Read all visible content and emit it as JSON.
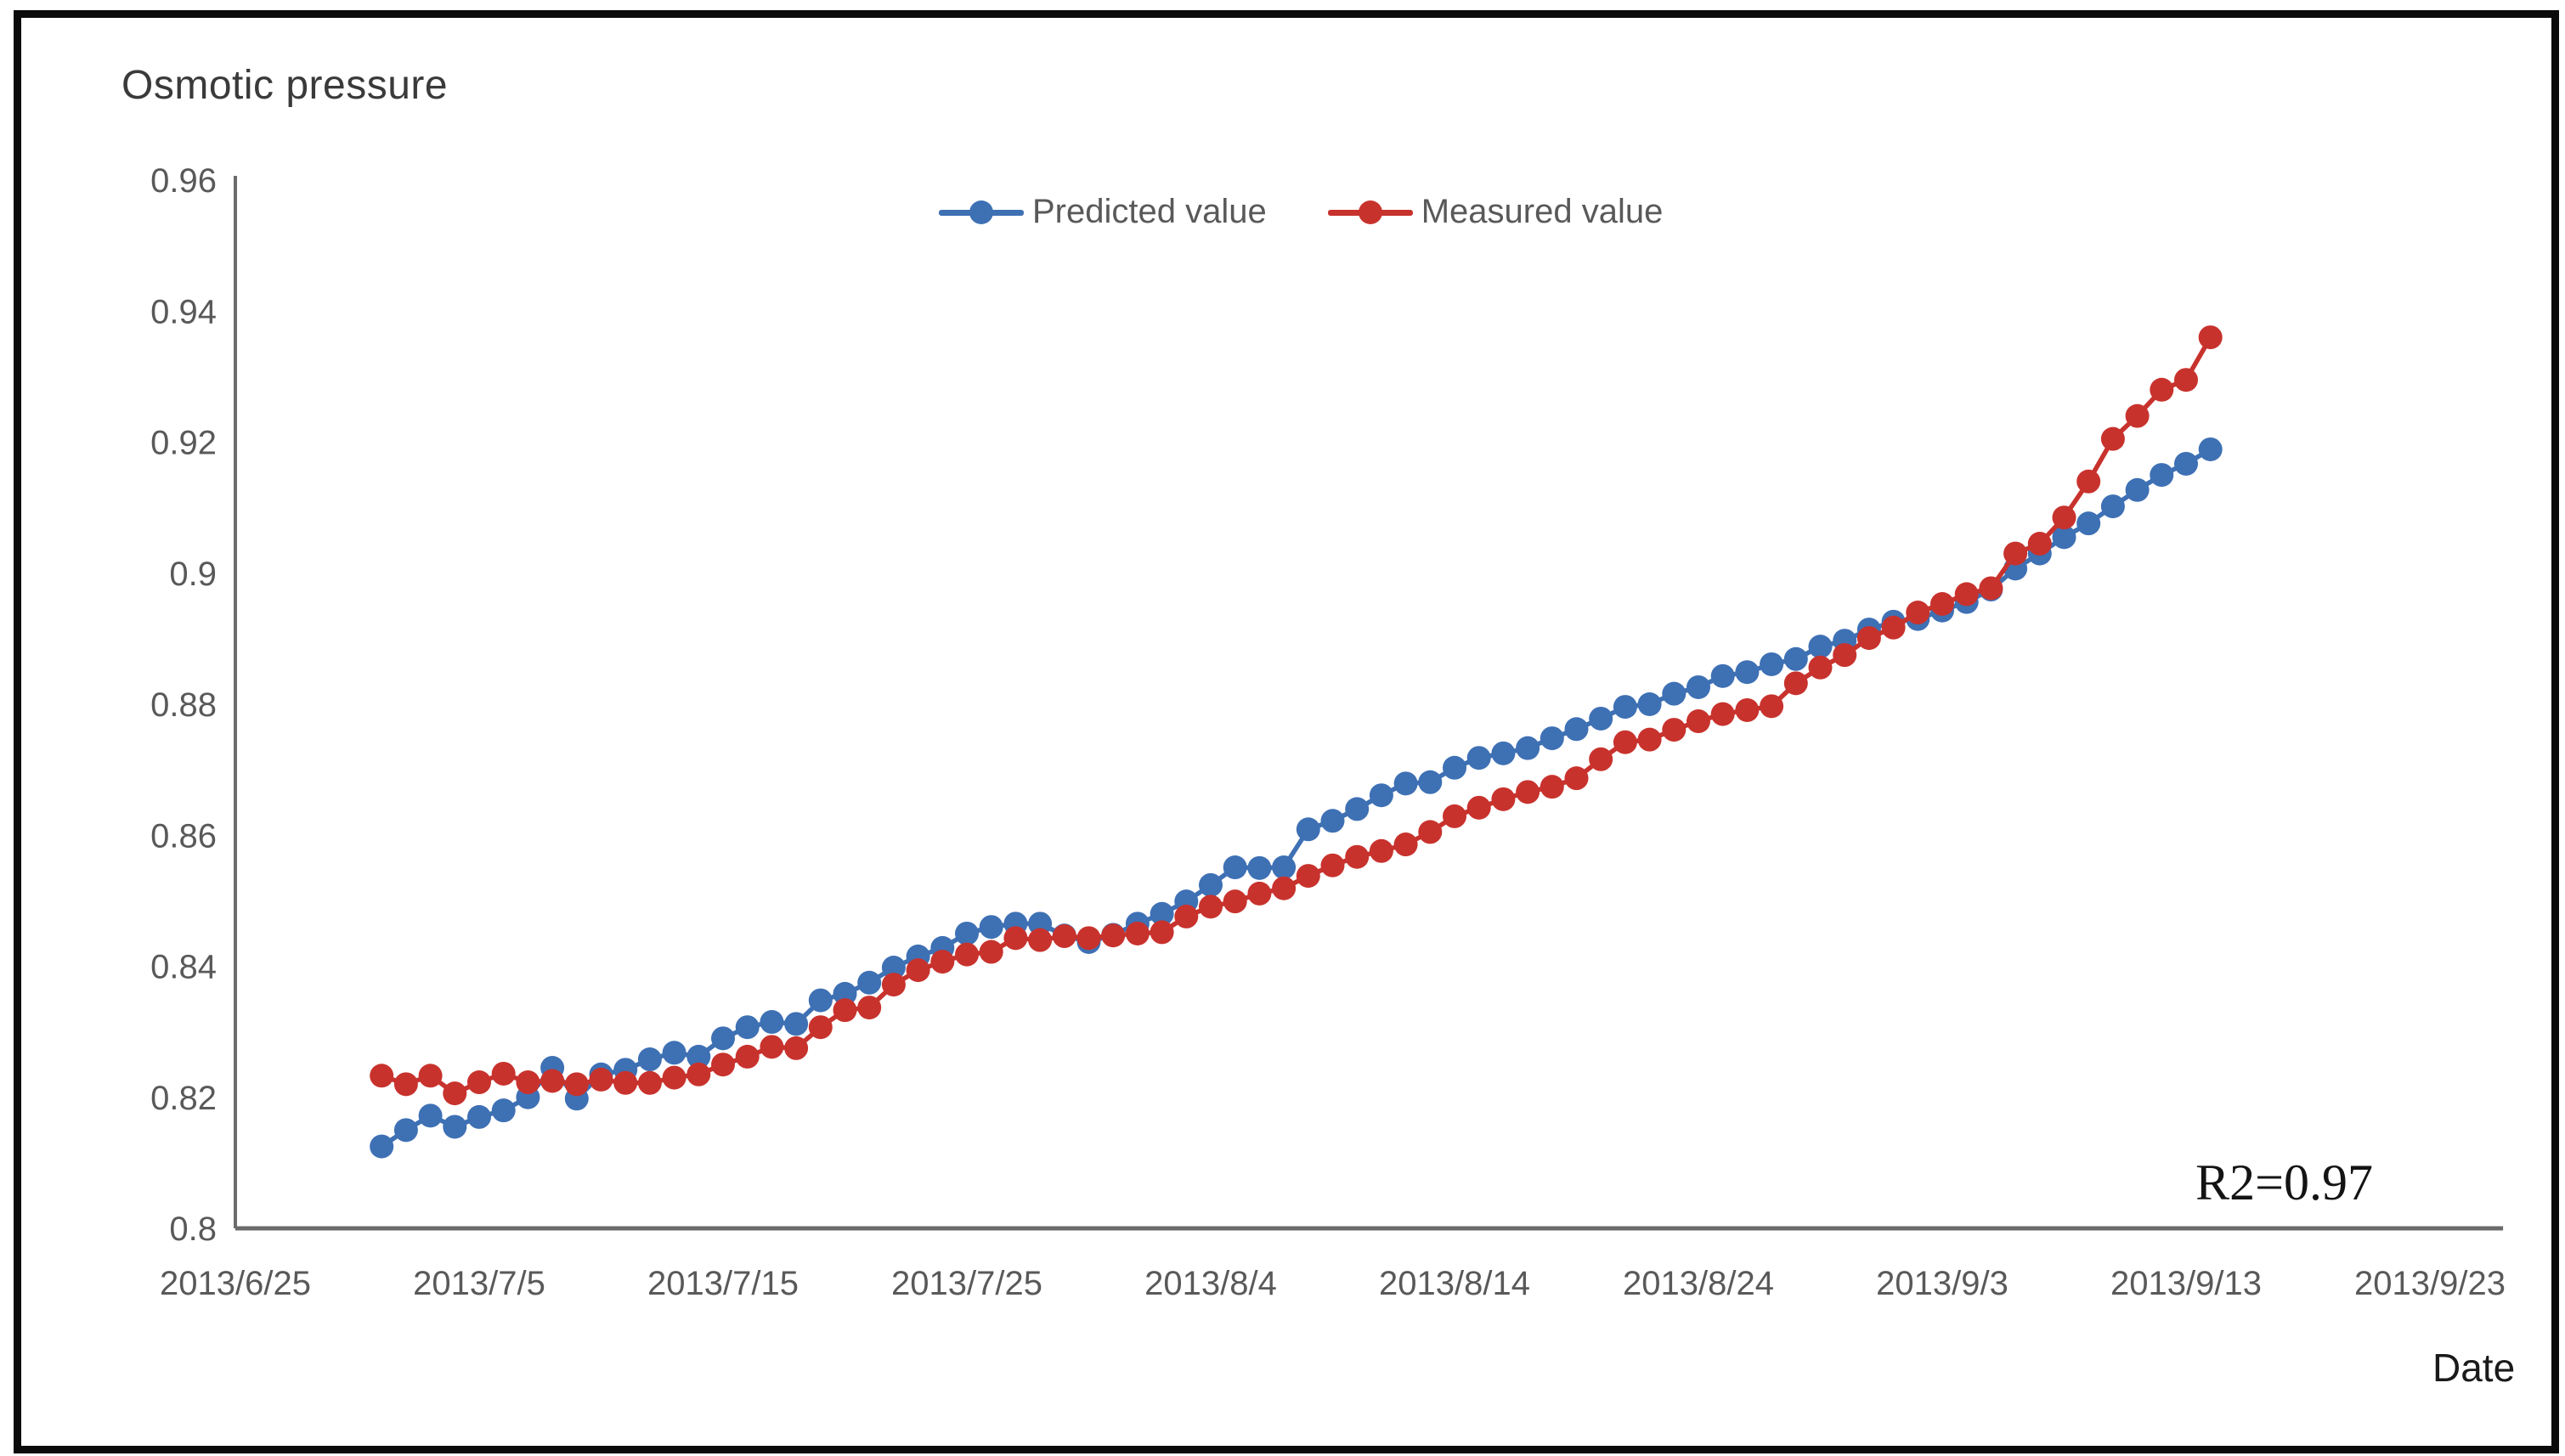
{
  "title": "Osmotic pressure",
  "x_axis_label": "Date",
  "annotation": {
    "r2": "R2=0.97"
  },
  "legend": {
    "predicted": "Predicted value",
    "measured": "Measured value"
  },
  "colors": {
    "predicted": "#3E70B4",
    "measured": "#C8322D",
    "axis": "#6b6b6b",
    "tick_text": "#595959",
    "frame_border": "#0b0b0b"
  },
  "chart_data": {
    "type": "line",
    "title": "Osmotic pressure",
    "xlabel": "Date",
    "ylabel": "Osmotic pressure",
    "grid": false,
    "legend_position": "top-center",
    "ylim": [
      0.8,
      0.96
    ],
    "y_tick_labels": [
      "0.8",
      "0.82",
      "0.84",
      "0.86",
      "0.88",
      "0.9",
      "0.92",
      "0.94",
      "0.96"
    ],
    "x_tick_labels": [
      "2013/6/25",
      "2013/7/5",
      "2013/7/15",
      "2013/7/25",
      "2013/8/4",
      "2013/8/14",
      "2013/8/24",
      "2013/9/3",
      "2013/9/13",
      "2013/9/23"
    ],
    "x_axis_start": "2013/6/25",
    "x_axis_end_day_offset": 93,
    "annotation": "R2=0.97",
    "dates": [
      "2013/7/1",
      "2013/7/2",
      "2013/7/3",
      "2013/7/4",
      "2013/7/5",
      "2013/7/6",
      "2013/7/7",
      "2013/7/8",
      "2013/7/9",
      "2013/7/10",
      "2013/7/11",
      "2013/7/12",
      "2013/7/13",
      "2013/7/14",
      "2013/7/15",
      "2013/7/16",
      "2013/7/17",
      "2013/7/18",
      "2013/7/19",
      "2013/7/20",
      "2013/7/21",
      "2013/7/22",
      "2013/7/23",
      "2013/7/24",
      "2013/7/25",
      "2013/7/26",
      "2013/7/27",
      "2013/7/28",
      "2013/7/29",
      "2013/7/30",
      "2013/7/31",
      "2013/8/1",
      "2013/8/2",
      "2013/8/3",
      "2013/8/4",
      "2013/8/5",
      "2013/8/6",
      "2013/8/7",
      "2013/8/8",
      "2013/8/9",
      "2013/8/10",
      "2013/8/11",
      "2013/8/12",
      "2013/8/13",
      "2013/8/14",
      "2013/8/15",
      "2013/8/16",
      "2013/8/17",
      "2013/8/18",
      "2013/8/19",
      "2013/8/20",
      "2013/8/21",
      "2013/8/22",
      "2013/8/23",
      "2013/8/24",
      "2013/8/25",
      "2013/8/26",
      "2013/8/27",
      "2013/8/28",
      "2013/8/29",
      "2013/8/30",
      "2013/8/31",
      "2013/9/1",
      "2013/9/2",
      "2013/9/3",
      "2013/9/4",
      "2013/9/5",
      "2013/9/6",
      "2013/9/7",
      "2013/9/8",
      "2013/9/9",
      "2013/9/10",
      "2013/9/11",
      "2013/9/12",
      "2013/9/13",
      "2013/9/14"
    ],
    "series": [
      {
        "name": "Predicted value",
        "color": "#3E70B4",
        "values": [
          0.8125,
          0.815,
          0.8172,
          0.8155,
          0.817,
          0.818,
          0.82,
          0.8245,
          0.8198,
          0.8235,
          0.8242,
          0.8258,
          0.8268,
          0.8262,
          0.829,
          0.8307,
          0.8315,
          0.8312,
          0.8348,
          0.8358,
          0.8375,
          0.8398,
          0.8415,
          0.8428,
          0.845,
          0.846,
          0.8465,
          0.8465,
          0.8447,
          0.8437,
          0.8448,
          0.8465,
          0.848,
          0.8499,
          0.8524,
          0.8551,
          0.855,
          0.8551,
          0.8609,
          0.8622,
          0.864,
          0.8661,
          0.8679,
          0.8681,
          0.8703,
          0.8718,
          0.8725,
          0.8733,
          0.8748,
          0.8762,
          0.8778,
          0.8796,
          0.88,
          0.8816,
          0.8826,
          0.8843,
          0.8849,
          0.8861,
          0.8869,
          0.8888,
          0.8897,
          0.8914,
          0.8926,
          0.893,
          0.8943,
          0.8956,
          0.8975,
          0.9007,
          0.903,
          0.9055,
          0.9076,
          0.9102,
          0.9127,
          0.915,
          0.9167,
          0.9189
        ]
      },
      {
        "name": "Measured value",
        "color": "#C8322D",
        "values": [
          0.8233,
          0.822,
          0.8233,
          0.8206,
          0.8223,
          0.8236,
          0.8223,
          0.8225,
          0.822,
          0.8227,
          0.8222,
          0.8222,
          0.823,
          0.8235,
          0.825,
          0.8262,
          0.8277,
          0.8275,
          0.8307,
          0.8333,
          0.8337,
          0.8372,
          0.8394,
          0.8407,
          0.8418,
          0.8422,
          0.8443,
          0.844,
          0.8446,
          0.8443,
          0.8447,
          0.845,
          0.8452,
          0.8476,
          0.8491,
          0.8499,
          0.8511,
          0.8519,
          0.8538,
          0.8554,
          0.8567,
          0.8576,
          0.8586,
          0.8605,
          0.8629,
          0.8642,
          0.8655,
          0.8666,
          0.8674,
          0.8687,
          0.8716,
          0.8742,
          0.8746,
          0.8761,
          0.8774,
          0.8785,
          0.8791,
          0.8797,
          0.8832,
          0.8856,
          0.8875,
          0.8901,
          0.8917,
          0.894,
          0.8953,
          0.8968,
          0.8977,
          0.903,
          0.9045,
          0.9085,
          0.914,
          0.9205,
          0.924,
          0.928,
          0.9295,
          0.936
        ]
      }
    ]
  }
}
